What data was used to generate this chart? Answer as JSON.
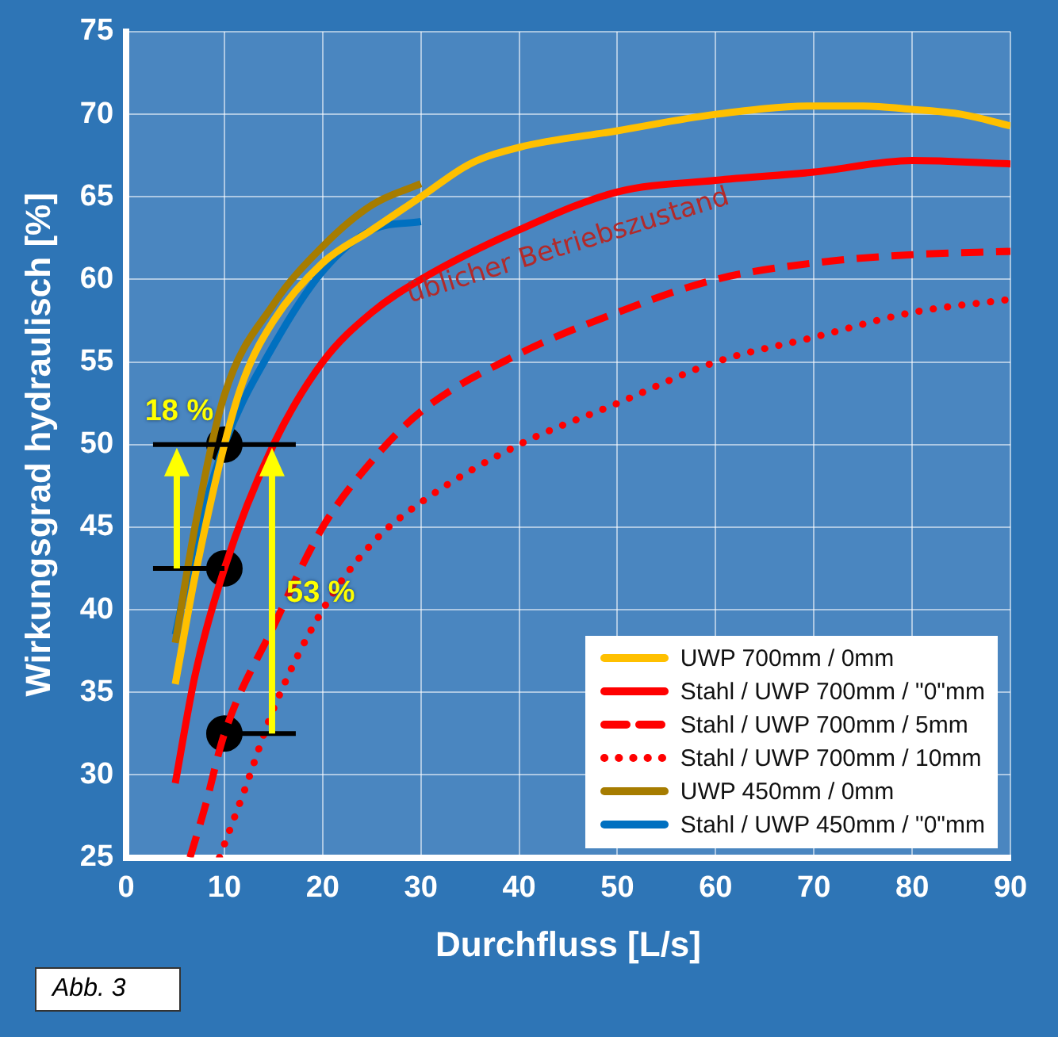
{
  "chart_data": {
    "type": "line",
    "xlabel": "Durchfluss [L/s]",
    "ylabel": "Wirkungsgrad hydraulisch [%]",
    "xlim": [
      0,
      90
    ],
    "xticks": [
      0,
      10,
      20,
      30,
      40,
      50,
      60,
      70,
      80,
      90
    ],
    "ylim": [
      25,
      75
    ],
    "yticks": [
      25,
      30,
      35,
      40,
      45,
      50,
      55,
      60,
      65,
      70,
      75
    ],
    "grid": true,
    "legend": "bottom right",
    "marker": "none",
    "series": [
      {
        "name": "UWP 700mm / 0mm",
        "color": "#ffc000",
        "line_style": "solid",
        "x": [
          5,
          7,
          10,
          12,
          15,
          20,
          25,
          30,
          35,
          40,
          50,
          60,
          70,
          75,
          80,
          85,
          90
        ],
        "values": [
          35.5,
          42,
          50,
          54,
          57.5,
          61,
          63,
          65,
          67,
          68,
          69,
          70,
          70.5,
          70.5,
          70.3,
          70,
          69.3
        ]
      },
      {
        "name": "Stahl / UWP 700mm / \"0\"mm",
        "color": "#ff0000",
        "line_style": "solid",
        "x": [
          5,
          7,
          10,
          15,
          20,
          25,
          30,
          40,
          50,
          60,
          70,
          80,
          90
        ],
        "values": [
          29.5,
          36,
          42.5,
          50,
          55,
          58,
          60,
          63,
          65.3,
          66,
          66.5,
          67.2,
          67
        ]
      },
      {
        "name": "Stahl / UWP 700mm / 5mm",
        "color": "#ff0000",
        "line_style": "dashed",
        "x": [
          6.5,
          8,
          10,
          15,
          20,
          25,
          30,
          40,
          50,
          60,
          70,
          80,
          90
        ],
        "values": [
          25,
          28,
          32.5,
          39,
          45,
          49,
          52,
          55.5,
          58,
          60,
          61,
          61.5,
          61.7
        ]
      },
      {
        "name": "Stahl / UWP 700mm / 10mm",
        "color": "#ff0000",
        "line_style": "dotted",
        "x": [
          9.5,
          12,
          15,
          20,
          25,
          30,
          40,
          50,
          60,
          70,
          80,
          90
        ],
        "values": [
          25,
          29,
          34,
          40,
          44,
          46.5,
          50,
          52.5,
          55,
          56.5,
          58,
          58.8
        ]
      },
      {
        "name": "UWP 450mm / 0mm",
        "color": "#a67c00",
        "line_style": "solid",
        "x": [
          5,
          7,
          10,
          15,
          20,
          25,
          30
        ],
        "values": [
          38,
          45,
          53,
          58.5,
          62,
          64.5,
          65.8
        ]
      },
      {
        "name": "Stahl / UWP 450mm / \"0\"mm",
        "color": "#0070c0",
        "line_style": "solid",
        "x": [
          5,
          7,
          10,
          15,
          20,
          25,
          30
        ],
        "values": [
          38.5,
          44,
          50,
          56,
          60.5,
          63,
          63.5
        ]
      },
      {
        "type": "scatter",
        "color": "#000000",
        "marker": "circle",
        "x": [
          10,
          10,
          10
        ],
        "values": [
          50,
          42.5,
          32.5
        ]
      }
    ],
    "annotations": [
      "üblicher Betriebszustand",
      "18 %",
      "53 %",
      "Abb. 3"
    ]
  }
}
